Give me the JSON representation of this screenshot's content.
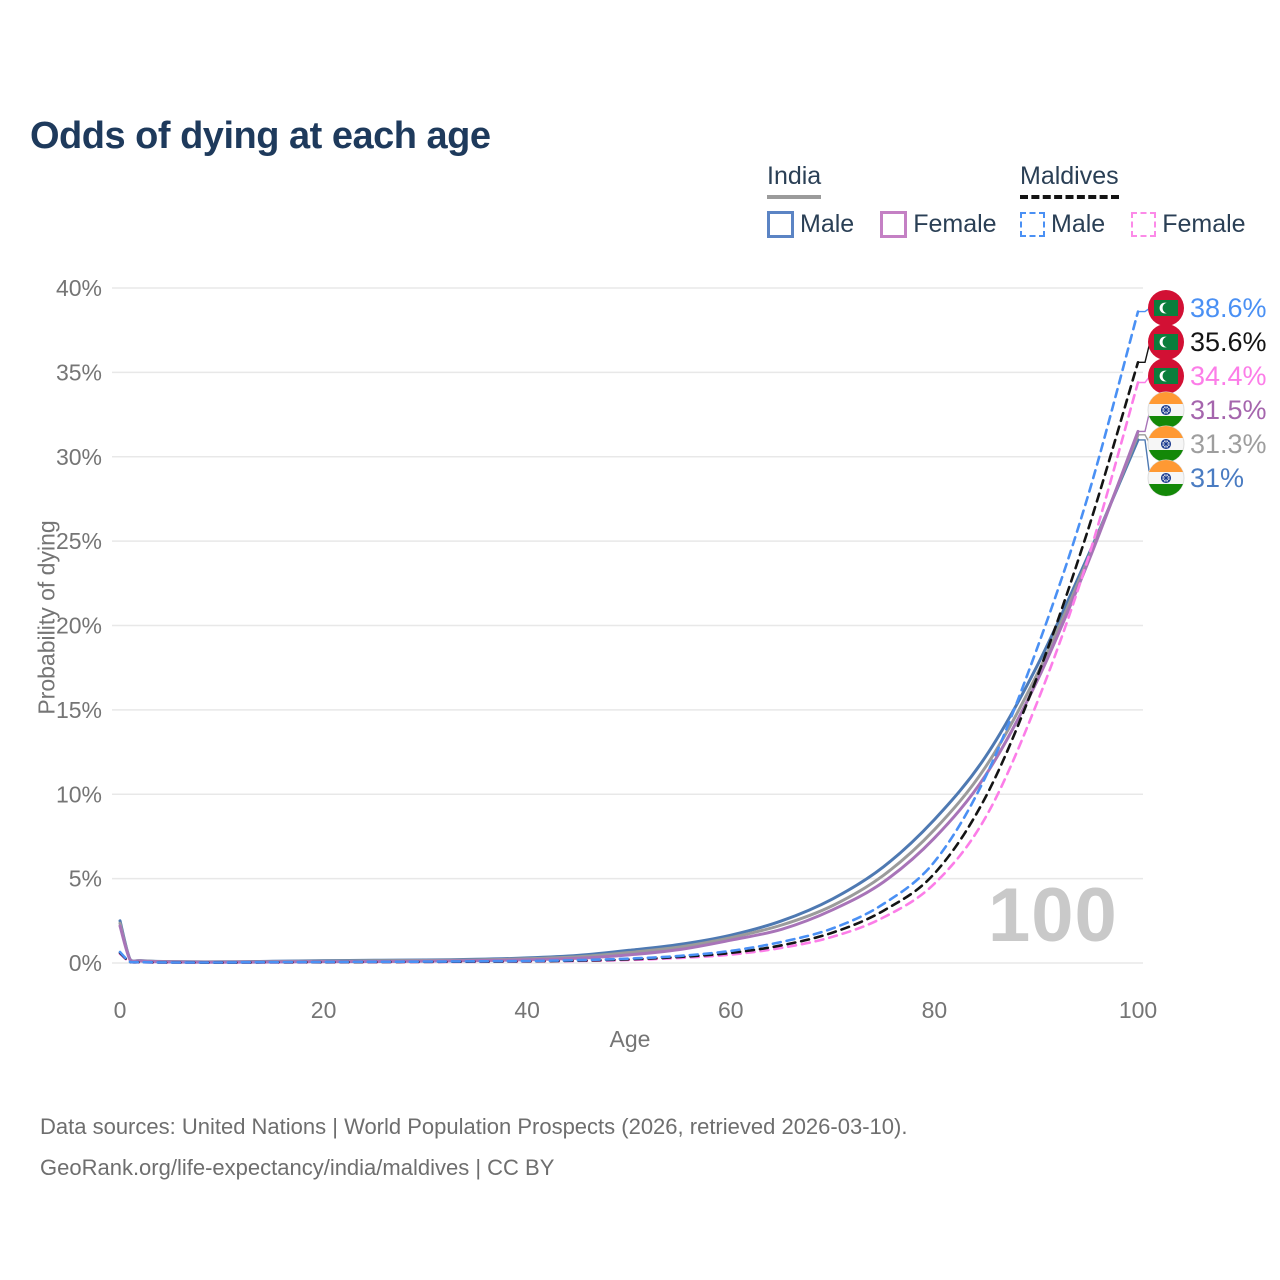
{
  "title": "Odds of dying at each age",
  "legend": {
    "groups": [
      {
        "name": "India",
        "line_style": "solid",
        "underline_color": "#9b9b9b",
        "items": [
          {
            "label": "Male",
            "color": "#5b84c4"
          },
          {
            "label": "Female",
            "color": "#c480c4"
          }
        ]
      },
      {
        "name": "Maldives",
        "line_style": "dashed",
        "underline_color": "#141414",
        "items": [
          {
            "label": "Male",
            "color": "#4a90f4"
          },
          {
            "label": "Female",
            "color": "#fc8ae8"
          }
        ]
      }
    ]
  },
  "watermark_age": "100",
  "axes": {
    "x_label": "Age",
    "y_label": "Probability of dying",
    "x_ticks": [
      {
        "v": 0,
        "label": "0"
      },
      {
        "v": 20,
        "label": "20"
      },
      {
        "v": 40,
        "label": "40"
      },
      {
        "v": 60,
        "label": "60"
      },
      {
        "v": 80,
        "label": "80"
      },
      {
        "v": 100,
        "label": "100"
      }
    ],
    "y_ticks": [
      {
        "v": 0,
        "label": "0%"
      },
      {
        "v": 5,
        "label": "5%"
      },
      {
        "v": 10,
        "label": "10%"
      },
      {
        "v": 15,
        "label": "15%"
      },
      {
        "v": 20,
        "label": "20%"
      },
      {
        "v": 25,
        "label": "25%"
      },
      {
        "v": 30,
        "label": "30%"
      },
      {
        "v": 35,
        "label": "35%"
      },
      {
        "v": 40,
        "label": "40%"
      }
    ]
  },
  "footer": {
    "line1": "Data sources: United Nations | World Population Prospects (2026, retrieved 2026-03-10).",
    "line2": "GeoRank.org/life-expectancy/india/maldives | CC BY"
  },
  "chart_data": {
    "type": "line",
    "title": "Odds of dying at each age",
    "xlabel": "Age",
    "ylabel": "Probability of dying",
    "xlim": [
      0,
      100
    ],
    "ylim_percent": [
      0,
      40
    ],
    "grid": "horizontal-only",
    "legend_position": "top-right",
    "ages": [
      0,
      1,
      2,
      5,
      10,
      15,
      20,
      25,
      30,
      35,
      40,
      45,
      50,
      55,
      60,
      65,
      70,
      75,
      80,
      85,
      90,
      95,
      100
    ],
    "series": [
      {
        "id": "maldives-male",
        "name": "Maldives Male",
        "country": "Maldives",
        "sex": "Male",
        "flag": "maldives",
        "color": "#4a90f4",
        "label_color": "#4a90f4",
        "dashed": true,
        "end_label": "38.6%",
        "end_value_pct": 38.6,
        "values_pct": [
          0.65,
          0.06,
          0.05,
          0.03,
          0.03,
          0.05,
          0.06,
          0.07,
          0.08,
          0.1,
          0.12,
          0.17,
          0.26,
          0.42,
          0.72,
          1.25,
          2.05,
          3.5,
          6.0,
          11.0,
          18.5,
          27.5,
          38.6
        ]
      },
      {
        "id": "maldives-both",
        "name": "Maldives Both sexes",
        "country": "Maldives",
        "sex": "Both",
        "flag": "maldives",
        "color": "#141414",
        "label_color": "#141414",
        "dashed": true,
        "end_label": "35.6%",
        "end_value_pct": 35.6,
        "values_pct": [
          0.6,
          0.055,
          0.045,
          0.028,
          0.025,
          0.04,
          0.05,
          0.06,
          0.07,
          0.08,
          0.1,
          0.14,
          0.22,
          0.36,
          0.6,
          1.05,
          1.8,
          3.1,
          5.3,
          9.8,
          16.8,
          25.5,
          35.6
        ]
      },
      {
        "id": "maldives-female",
        "name": "Maldives Female",
        "country": "Maldives",
        "sex": "Female",
        "flag": "maldives",
        "color": "#fc7de8",
        "label_color": "#fc7de8",
        "dashed": true,
        "end_label": "34.4%",
        "end_value_pct": 34.4,
        "values_pct": [
          0.55,
          0.05,
          0.04,
          0.025,
          0.02,
          0.03,
          0.04,
          0.05,
          0.06,
          0.07,
          0.09,
          0.12,
          0.18,
          0.3,
          0.5,
          0.9,
          1.55,
          2.7,
          4.7,
          8.6,
          15.3,
          23.8,
          34.4
        ]
      },
      {
        "id": "india-female",
        "name": "India Female",
        "country": "India",
        "sex": "Female",
        "flag": "india",
        "color": "#a874b8",
        "label_color": "#a565ad",
        "dashed": false,
        "end_label": "31.5%",
        "end_value_pct": 31.5,
        "values_pct": [
          2.2,
          0.17,
          0.12,
          0.06,
          0.05,
          0.06,
          0.08,
          0.09,
          0.11,
          0.14,
          0.19,
          0.28,
          0.48,
          0.8,
          1.35,
          2.0,
          3.15,
          4.8,
          7.4,
          11.1,
          16.6,
          23.6,
          31.5
        ]
      },
      {
        "id": "india-both",
        "name": "India Both sexes",
        "country": "India",
        "sex": "Both",
        "flag": "india",
        "color": "#9b9b9b",
        "label_color": "#9e9e9e",
        "dashed": false,
        "end_label": "31.3%",
        "end_value_pct": 31.3,
        "values_pct": [
          2.35,
          0.18,
          0.13,
          0.07,
          0.06,
          0.08,
          0.11,
          0.13,
          0.15,
          0.18,
          0.25,
          0.37,
          0.62,
          0.95,
          1.5,
          2.25,
          3.4,
          5.2,
          7.9,
          11.6,
          17.0,
          23.8,
          31.3
        ]
      },
      {
        "id": "india-male",
        "name": "India Male",
        "country": "India",
        "sex": "Male",
        "flag": "india",
        "color": "#4e79b2",
        "label_color": "#4a7cc2",
        "dashed": false,
        "end_label": "31%",
        "end_value_pct": 31.0,
        "values_pct": [
          2.5,
          0.2,
          0.14,
          0.08,
          0.07,
          0.1,
          0.14,
          0.16,
          0.18,
          0.22,
          0.3,
          0.45,
          0.75,
          1.1,
          1.65,
          2.5,
          3.8,
          5.7,
          8.5,
          12.2,
          17.5,
          24.0,
          31.0
        ]
      }
    ]
  }
}
